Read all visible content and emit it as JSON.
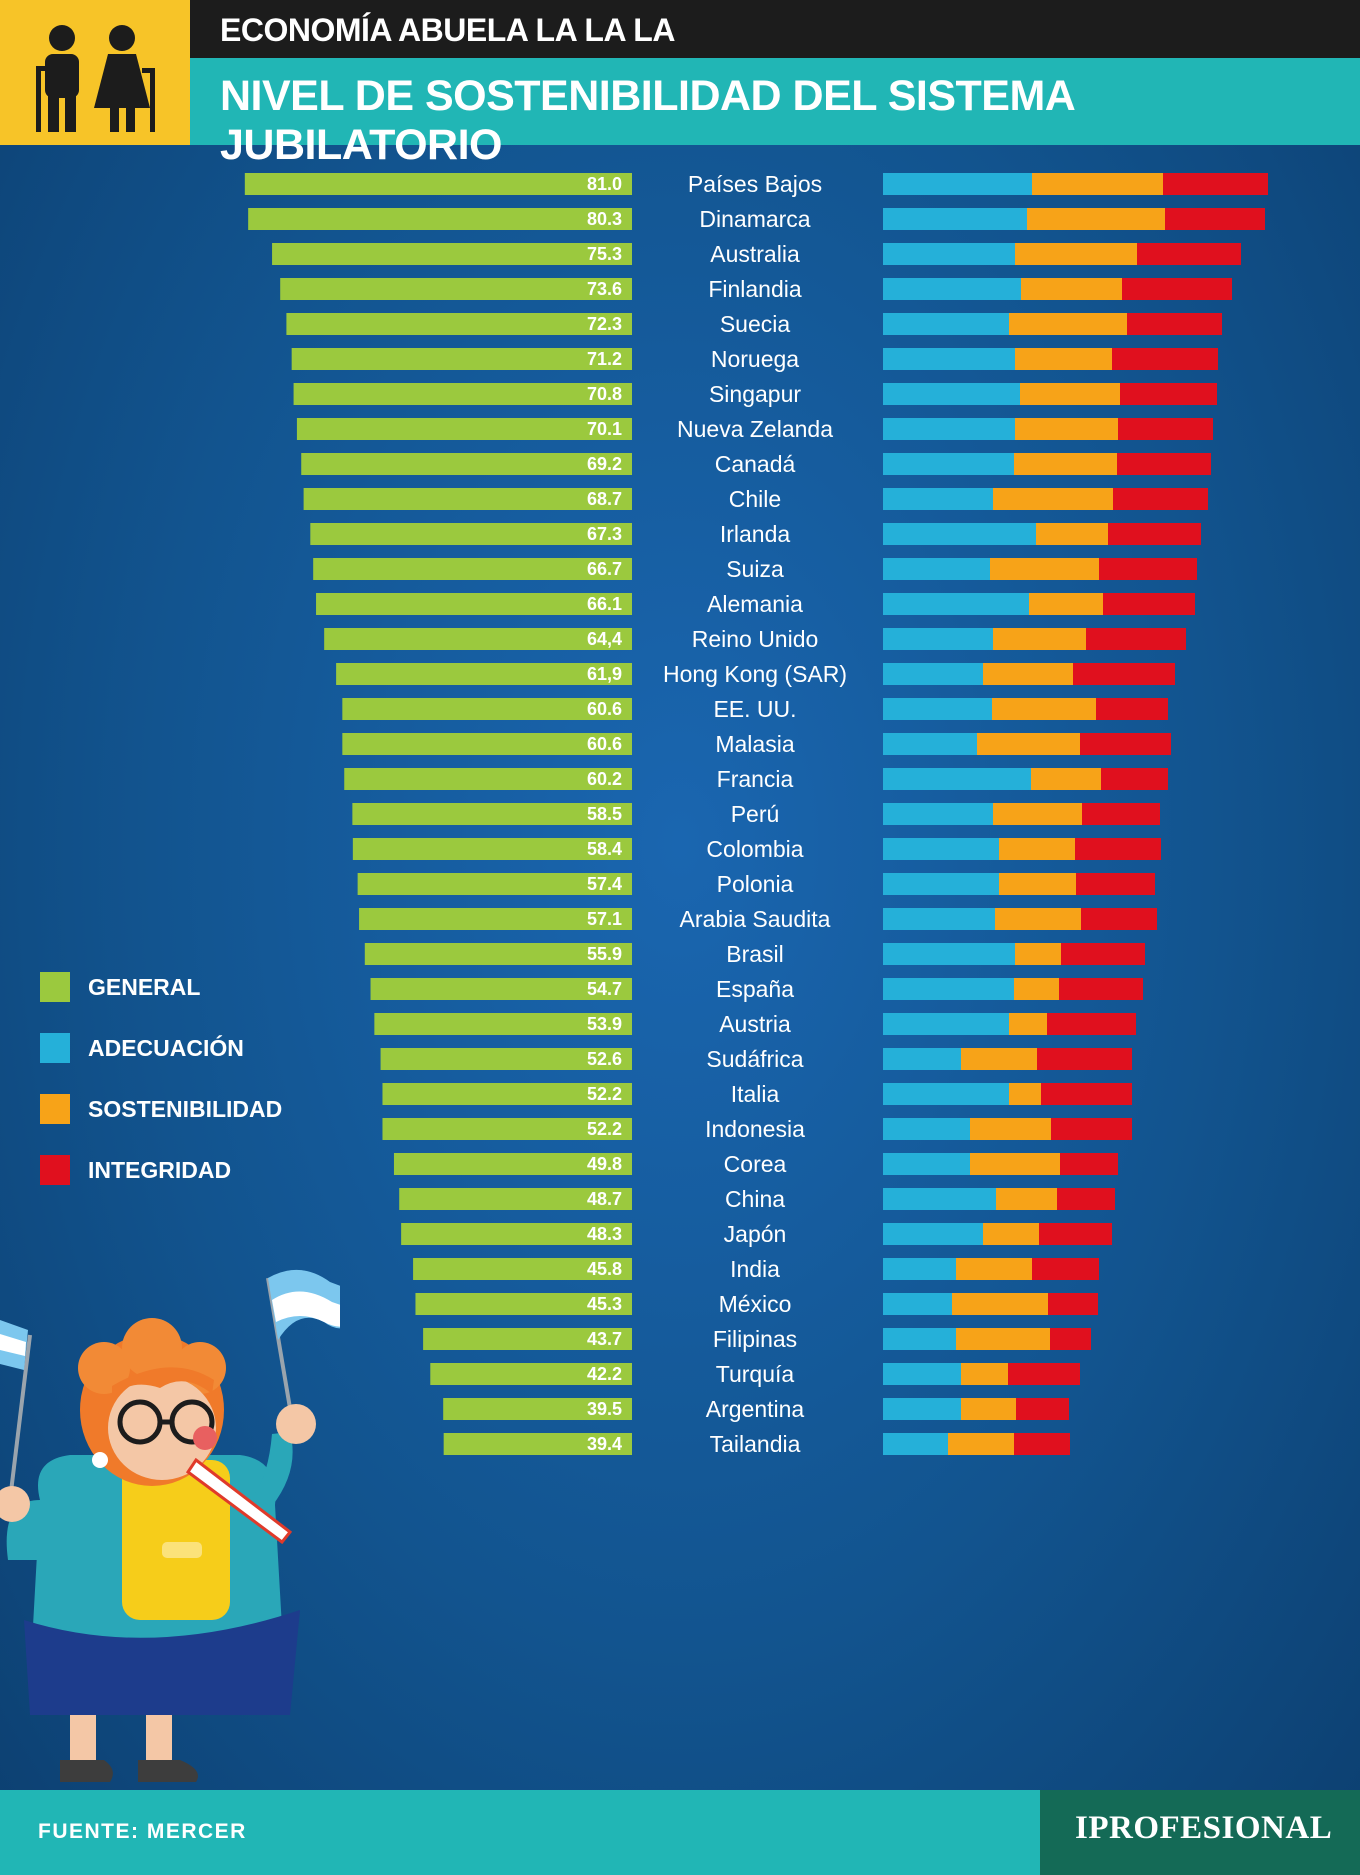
{
  "header": {
    "kicker": "ECONOMÍA ABUELA LA LA LA",
    "title": "NIVEL DE SOSTENIBILIDAD DEL SISTEMA JUBILATORIO"
  },
  "legend": [
    {
      "label": "GENERAL",
      "color": "#9bc93e"
    },
    {
      "label": "ADECUACIÓN",
      "color": "#25b0d9"
    },
    {
      "label": "SOSTENIBILIDAD",
      "color": "#f7a318"
    },
    {
      "label": "INTEGRIDAD",
      "color": "#e0101e"
    }
  ],
  "footer": {
    "source": "FUENTE: MERCER",
    "brand": "IPROFESIONAL"
  },
  "chart_data": {
    "type": "bar",
    "orientation": "horizontal",
    "title": "NIVEL DE SOSTENIBILIDAD DEL SISTEMA JUBILATORIO",
    "categories": [
      "Países Bajos",
      "Dinamarca",
      "Australia",
      "Finlandia",
      "Suecia",
      "Noruega",
      "Singapur",
      "Nueva Zelanda",
      "Canadá",
      "Chile",
      "Irlanda",
      "Suiza",
      "Alemania",
      "Reino Unido",
      "Hong Kong (SAR)",
      "EE. UU.",
      "Malasia",
      "Francia",
      "Perú",
      "Colombia",
      "Polonia",
      "Arabia Saudita",
      "Brasil",
      "España",
      "Austria",
      "Sudáfrica",
      "Italia",
      "Indonesia",
      "Corea",
      "China",
      "Japón",
      "India",
      "México",
      "Filipinas",
      "Turquía",
      "Argentina",
      "Tailandia"
    ],
    "general_labels": [
      "81.0",
      "80.3",
      "75.3",
      "73.6",
      "72.3",
      "71.2",
      "70.8",
      "70.1",
      "69.2",
      "68.7",
      "67.3",
      "66.7",
      "66.1",
      "64,4",
      "61,9",
      "60.6",
      "60.6",
      "60.2",
      "58.5",
      "58.4",
      "57.4",
      "57.1",
      "55.9",
      "54.7",
      "53.9",
      "52.6",
      "52.2",
      "52.2",
      "49.8",
      "48.7",
      "48.3",
      "45.8",
      "45.3",
      "43.7",
      "42.2",
      "39.5",
      "39.4"
    ],
    "series": [
      {
        "name": "GENERAL",
        "color": "#9bc93e",
        "values": [
          81.0,
          80.3,
          75.3,
          73.6,
          72.3,
          71.2,
          70.8,
          70.1,
          69.2,
          68.7,
          67.3,
          66.7,
          66.1,
          64.4,
          61.9,
          60.6,
          60.6,
          60.2,
          58.5,
          58.4,
          57.4,
          57.1,
          55.9,
          54.7,
          53.9,
          52.6,
          52.2,
          52.2,
          49.8,
          48.7,
          48.3,
          45.8,
          45.3,
          43.7,
          42.2,
          39.5,
          39.4
        ]
      },
      {
        "name": "ADECUACIÓN",
        "color": "#25b0d9",
        "values": [
          149,
          144,
          132,
          138,
          126,
          132,
          137,
          132,
          131,
          110,
          153,
          107,
          146,
          110,
          100,
          109,
          94,
          148,
          110,
          116,
          116,
          112,
          132,
          131,
          126,
          78,
          126,
          87,
          87,
          113,
          100,
          73,
          69,
          73,
          78,
          78,
          65
        ]
      },
      {
        "name": "SOSTENIBILIDAD",
        "color": "#f7a318",
        "values": [
          131,
          138,
          122,
          101,
          118,
          97,
          100,
          103,
          103,
          120,
          72,
          109,
          74,
          93,
          90,
          104,
          103,
          70,
          89,
          76,
          77,
          86,
          46,
          45,
          38,
          76,
          32,
          81,
          90,
          61,
          56,
          76,
          96,
          94,
          47,
          55,
          66
        ]
      },
      {
        "name": "INTEGRIDAD",
        "color": "#e0101e",
        "values": [
          105,
          100,
          104,
          110,
          95,
          106,
          97,
          95,
          94,
          95,
          93,
          98,
          92,
          100,
          102,
          72,
          91,
          67,
          78,
          86,
          79,
          76,
          84,
          84,
          89,
          95,
          91,
          81,
          58,
          58,
          73,
          67,
          50,
          41,
          72,
          53,
          56
        ]
      }
    ],
    "legend_position": "left",
    "grid": false
  }
}
